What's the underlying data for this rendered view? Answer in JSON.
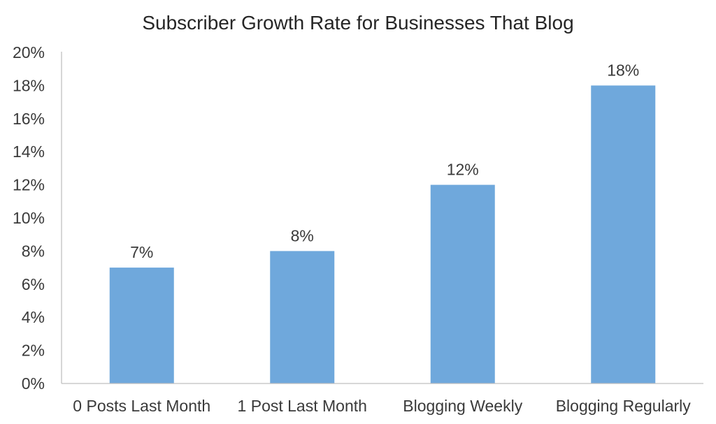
{
  "chart_data": {
    "type": "bar",
    "title": "Subscriber Growth Rate for Businesses That Blog",
    "xlabel": "",
    "ylabel": "",
    "categories": [
      "0 Posts Last Month",
      "1 Post Last Month",
      "Blogging Weekly",
      "Blogging Regularly"
    ],
    "values": [
      7,
      8,
      12,
      18
    ],
    "data_labels": [
      "7%",
      "8%",
      "12%",
      "18%"
    ],
    "ylim": [
      0,
      20
    ],
    "y_ticks": [
      0,
      2,
      4,
      6,
      8,
      10,
      12,
      14,
      16,
      18,
      20
    ],
    "y_tick_labels": [
      "0%",
      "2%",
      "4%",
      "6%",
      "8%",
      "10%",
      "12%",
      "14%",
      "16%",
      "18%",
      "20%"
    ],
    "grid": false,
    "legend": "none",
    "bar_color": "#6fa8dc",
    "axis_color": "#bfbfbf",
    "text_color": "#3a3a3a"
  }
}
